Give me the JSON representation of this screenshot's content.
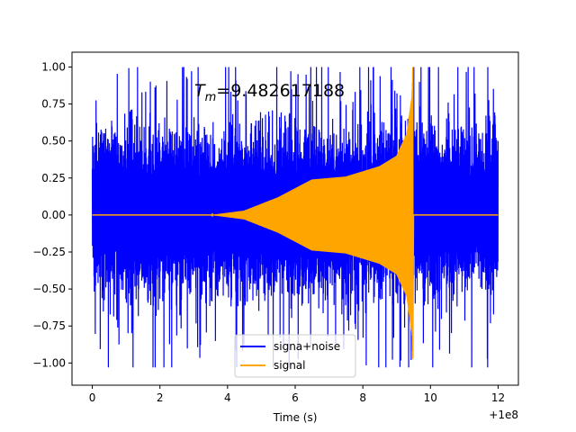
{
  "chart_data": {
    "type": "line",
    "title": "",
    "annotation": {
      "prefix": "T",
      "subscript": "m",
      "value_text": "=9.482617188",
      "anchor_x": 6.1,
      "anchor_y": 0.83
    },
    "xlabel": "Time (s)",
    "ylabel": "",
    "x_offset_label": "+1e8",
    "xlim": [
      -0.6,
      12.6
    ],
    "ylim": [
      -1.15,
      1.1
    ],
    "xticks": [
      0,
      2,
      4,
      6,
      8,
      10,
      12
    ],
    "xtick_labels": [
      "0",
      "2",
      "4",
      "6",
      "8",
      "10",
      "12"
    ],
    "yticks": [
      -1.0,
      -0.75,
      -0.5,
      -0.25,
      0.0,
      0.25,
      0.5,
      0.75,
      1.0
    ],
    "ytick_labels": [
      "−1.00",
      "−0.75",
      "−0.50",
      "−0.25",
      "0.00",
      "0.25",
      "0.50",
      "0.75",
      "1.00"
    ],
    "grid": false,
    "legend_position": "bottom-center",
    "series": [
      {
        "name": "signa+noise",
        "color": "#0000ff",
        "x_range": [
          0,
          12
        ],
        "envelope_positive_typical": 0.5,
        "envelope_negative_typical": -0.45,
        "max": 1.0,
        "min": -1.03
      },
      {
        "name": "signal",
        "color": "#ffa500",
        "description_points": {
          "x": [
            0,
            3.5,
            4.5,
            5.5,
            6.5,
            7.5,
            8.5,
            9.0,
            9.3,
            9.45,
            9.48,
            9.5,
            12
          ],
          "y_envelope": [
            0,
            0,
            0.03,
            0.12,
            0.24,
            0.26,
            0.33,
            0.4,
            0.55,
            0.8,
            1.0,
            0,
            0
          ]
        },
        "max": 1.0,
        "min": -0.96,
        "merger_time": 9.482617188
      }
    ]
  }
}
